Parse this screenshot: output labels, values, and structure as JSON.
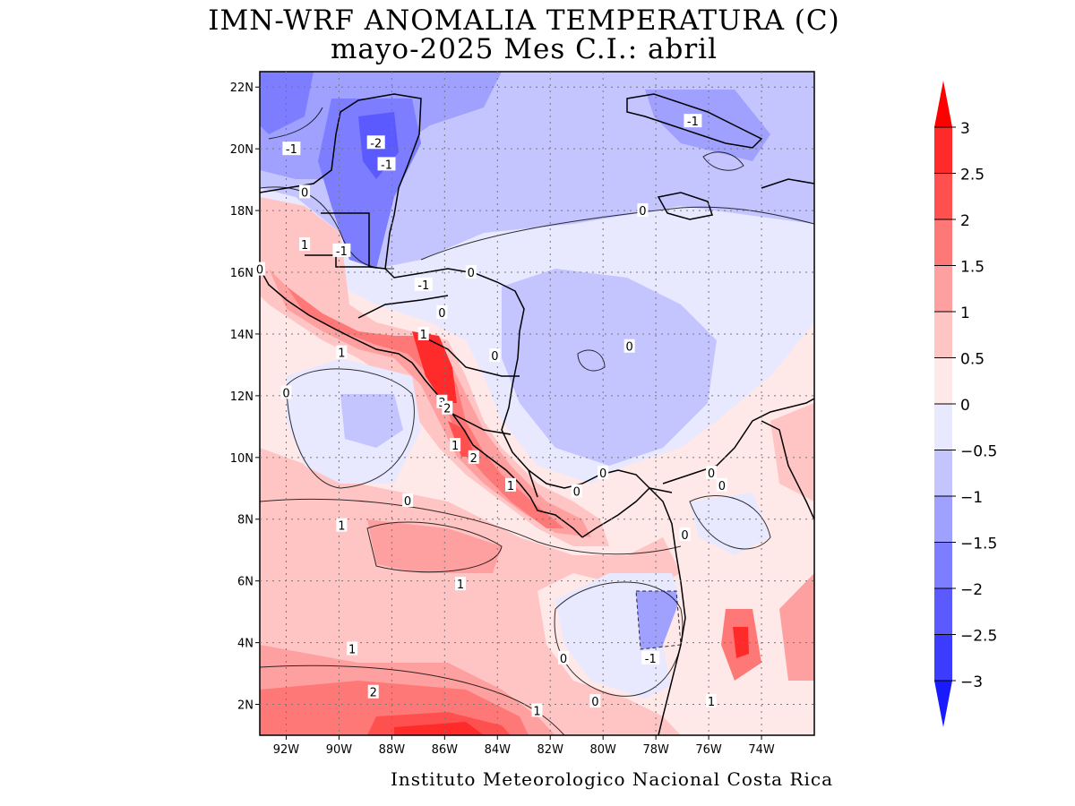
{
  "title": "IMN-WRF  ANOMALIA TEMPERATURA (C)",
  "subtitle": "mayo-2025 Mes C.I.: abril",
  "credit": "Instituto Meteorologico Nacional Costa Rica",
  "map": {
    "lon_ticks": [
      "92W",
      "90W",
      "88W",
      "86W",
      "84W",
      "82W",
      "80W",
      "78W",
      "76W",
      "74W"
    ],
    "lat_ticks": [
      "22N",
      "20N",
      "18N",
      "16N",
      "14N",
      "12N",
      "10N",
      "8N",
      "6N",
      "4N",
      "2N"
    ],
    "contour_labels": [
      {
        "text": "-1",
        "lon": -91.8,
        "lat": 20.0
      },
      {
        "text": "-2",
        "lon": -88.6,
        "lat": 20.2
      },
      {
        "text": "-1",
        "lon": -88.2,
        "lat": 19.5
      },
      {
        "text": "-1",
        "lon": -76.6,
        "lat": 20.9
      },
      {
        "text": "0",
        "lon": -91.3,
        "lat": 18.6
      },
      {
        "text": "0",
        "lon": -78.5,
        "lat": 18.0
      },
      {
        "text": "1",
        "lon": -91.3,
        "lat": 16.9
      },
      {
        "text": "-1",
        "lon": -89.9,
        "lat": 16.7
      },
      {
        "text": "0",
        "lon": -93.0,
        "lat": 16.1
      },
      {
        "text": "0",
        "lon": -85.0,
        "lat": 16.0
      },
      {
        "text": "-1",
        "lon": -86.8,
        "lat": 15.6
      },
      {
        "text": "0",
        "lon": -86.1,
        "lat": 14.7
      },
      {
        "text": "1",
        "lon": -86.8,
        "lat": 14.0
      },
      {
        "text": "1",
        "lon": -89.9,
        "lat": 13.4
      },
      {
        "text": "0",
        "lon": -84.1,
        "lat": 13.3
      },
      {
        "text": "0",
        "lon": -79.0,
        "lat": 13.6
      },
      {
        "text": "0",
        "lon": -92.0,
        "lat": 12.1
      },
      {
        "text": "3",
        "lon": -86.1,
        "lat": 11.8
      },
      {
        "text": "2",
        "lon": -85.9,
        "lat": 11.6
      },
      {
        "text": "1",
        "lon": -85.6,
        "lat": 10.4
      },
      {
        "text": "2",
        "lon": -84.9,
        "lat": 10.0
      },
      {
        "text": "1",
        "lon": -83.5,
        "lat": 9.1
      },
      {
        "text": "0",
        "lon": -80.0,
        "lat": 9.5
      },
      {
        "text": "0",
        "lon": -81.0,
        "lat": 8.9
      },
      {
        "text": "0",
        "lon": -75.9,
        "lat": 9.5
      },
      {
        "text": "0",
        "lon": -75.5,
        "lat": 9.1
      },
      {
        "text": "0",
        "lon": -87.4,
        "lat": 8.6
      },
      {
        "text": "1",
        "lon": -89.9,
        "lat": 7.8
      },
      {
        "text": "0",
        "lon": -76.9,
        "lat": 7.5
      },
      {
        "text": "1",
        "lon": -85.4,
        "lat": 5.9
      },
      {
        "text": "1",
        "lon": -89.5,
        "lat": 3.8
      },
      {
        "text": "0",
        "lon": -81.5,
        "lat": 3.5
      },
      {
        "text": "-1",
        "lon": -78.2,
        "lat": 3.5
      },
      {
        "text": "2",
        "lon": -88.7,
        "lat": 2.4
      },
      {
        "text": "0",
        "lon": -80.3,
        "lat": 2.1
      },
      {
        "text": "1",
        "lon": -75.9,
        "lat": 2.1
      },
      {
        "text": "1",
        "lon": -82.5,
        "lat": 1.8
      }
    ]
  },
  "colorbar": {
    "levels": [
      -3,
      -2.5,
      -2,
      -1.5,
      -1,
      -0.5,
      0,
      0.5,
      1,
      1.5,
      2,
      2.5,
      3
    ],
    "labels": [
      "3",
      "2.5",
      "2",
      "1.5",
      "1",
      "0.5",
      "0",
      "−0.5",
      "−1",
      "−1.5",
      "−2",
      "−2.5",
      "−3"
    ],
    "colors": [
      "#1a1aff",
      "#3c3cff",
      "#5a5aff",
      "#7d7dff",
      "#a0a0ff",
      "#c4c4ff",
      "#e8e8ff",
      "#ffe8e8",
      "#ffc4c4",
      "#ffa0a0",
      "#ff7878",
      "#ff5050",
      "#ff2a2a",
      "#ff0000"
    ]
  }
}
